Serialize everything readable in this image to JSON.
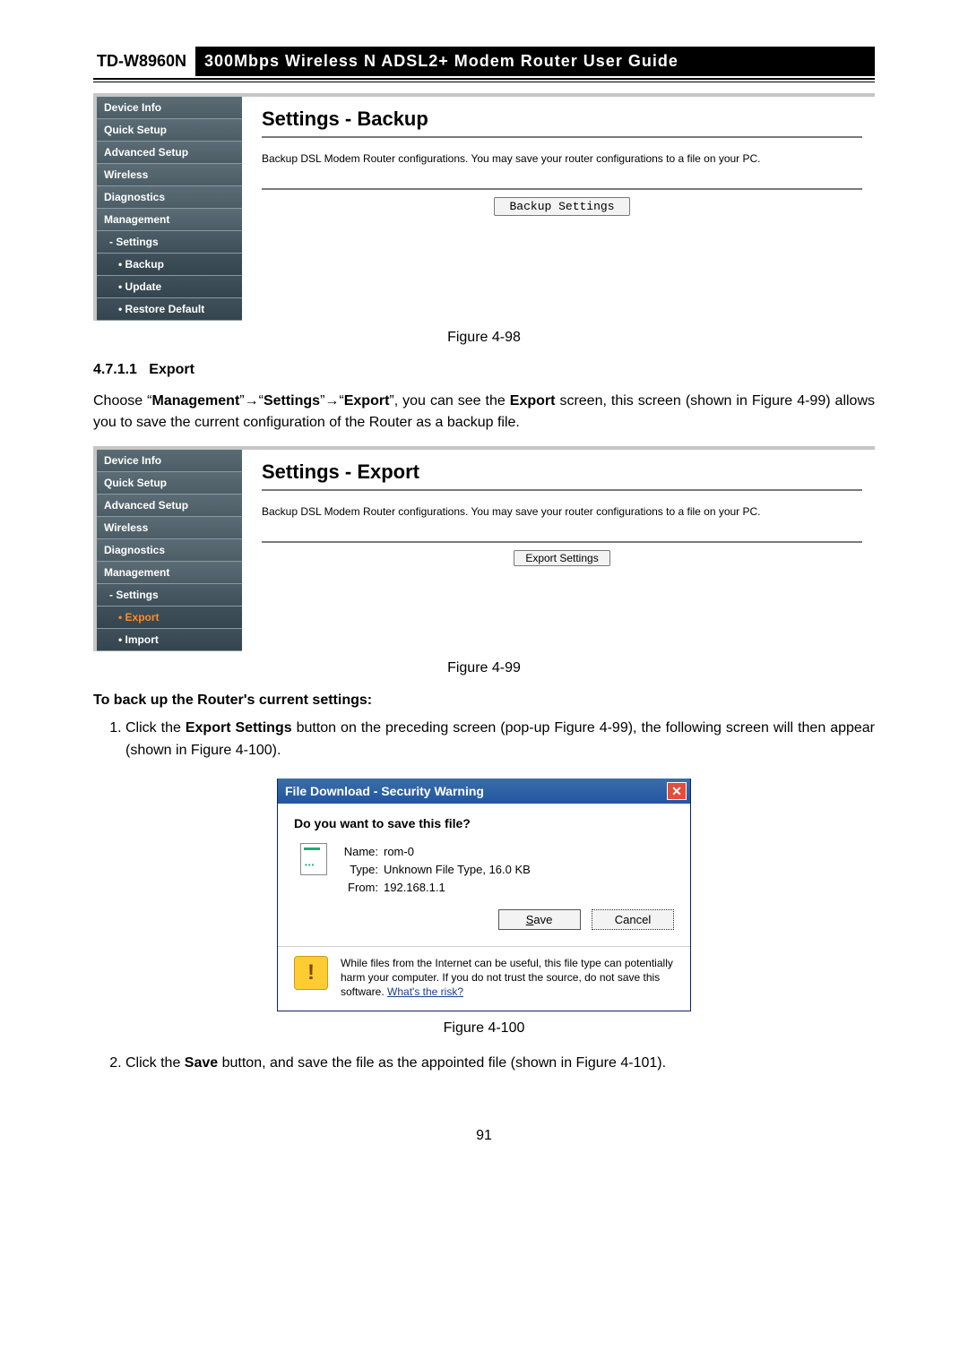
{
  "header": {
    "model": "TD-W8960N",
    "title": "300Mbps Wireless N ADSL2+ Modem Router User Guide"
  },
  "fig98": {
    "sidebar": [
      {
        "lvl": 0,
        "label": "Device Info"
      },
      {
        "lvl": 0,
        "label": "Quick Setup"
      },
      {
        "lvl": 0,
        "label": "Advanced Setup"
      },
      {
        "lvl": 0,
        "label": "Wireless"
      },
      {
        "lvl": 0,
        "label": "Diagnostics"
      },
      {
        "lvl": 0,
        "label": "Management"
      },
      {
        "lvl": 1,
        "label": "Settings"
      },
      {
        "lvl": 2,
        "label": "Backup"
      },
      {
        "lvl": 2,
        "label": "Update"
      },
      {
        "lvl": 2,
        "label": "Restore Default"
      }
    ],
    "title": "Settings - Backup",
    "desc": "Backup DSL Modem Router configurations. You may save your router configurations to a file on your PC.",
    "button": "Backup Settings",
    "caption": "Figure 4-98"
  },
  "section": {
    "num": "4.7.1.1",
    "title": "Export",
    "para_pre": "Choose “",
    "m1": "Management",
    "arrow": "→",
    "q": "”",
    "m2": "Settings",
    "m3": "Export",
    "para_mid1": "”, you can see the ",
    "para_mid2": " screen, this screen (shown in Figure 4-99) allows you to save the current configuration of the Router as a backup file."
  },
  "fig99": {
    "sidebar": [
      {
        "lvl": 0,
        "label": "Device Info"
      },
      {
        "lvl": 0,
        "label": "Quick Setup"
      },
      {
        "lvl": 0,
        "label": "Advanced Setup"
      },
      {
        "lvl": 0,
        "label": "Wireless"
      },
      {
        "lvl": 0,
        "label": "Diagnostics"
      },
      {
        "lvl": 0,
        "label": "Management"
      },
      {
        "lvl": 1,
        "label": "Settings"
      },
      {
        "lvl": 2,
        "label": "Export",
        "hl": true
      },
      {
        "lvl": 2,
        "label": "Import"
      }
    ],
    "title": "Settings - Export",
    "desc": "Backup DSL Modem Router configurations. You may save your router configurations to a file on your PC.",
    "button": "Export Settings",
    "caption": "Figure 4-99"
  },
  "subhead": "To back up the Router's current settings:",
  "step1": {
    "pre": "Click the ",
    "bold": "Export Settings",
    "post": " button on the preceding screen (pop-up Figure 4-99), the following screen will then appear (shown in Figure 4-100)."
  },
  "dialog": {
    "title": "File Download - Security Warning",
    "close": "✕",
    "question": "Do you want to save this file?",
    "name_lbl": "Name:",
    "name_val": "rom-0",
    "type_lbl": "Type:",
    "type_val": "Unknown File Type, 16.0 KB",
    "from_lbl": "From:",
    "from_val": "192.168.1.1",
    "save_u": "S",
    "save_rest": "ave",
    "cancel": "Cancel",
    "warn1": "While files from the Internet can be useful, this file type can potentially harm your computer. If you do not trust the source, do not save this software. ",
    "warn_link": "What's the risk?",
    "caption": "Figure 4-100"
  },
  "step2": {
    "pre": "Click the ",
    "bold": "Save",
    "post": " button, and save the file as the appointed file (shown in Figure 4-101)."
  },
  "page_num": "91"
}
